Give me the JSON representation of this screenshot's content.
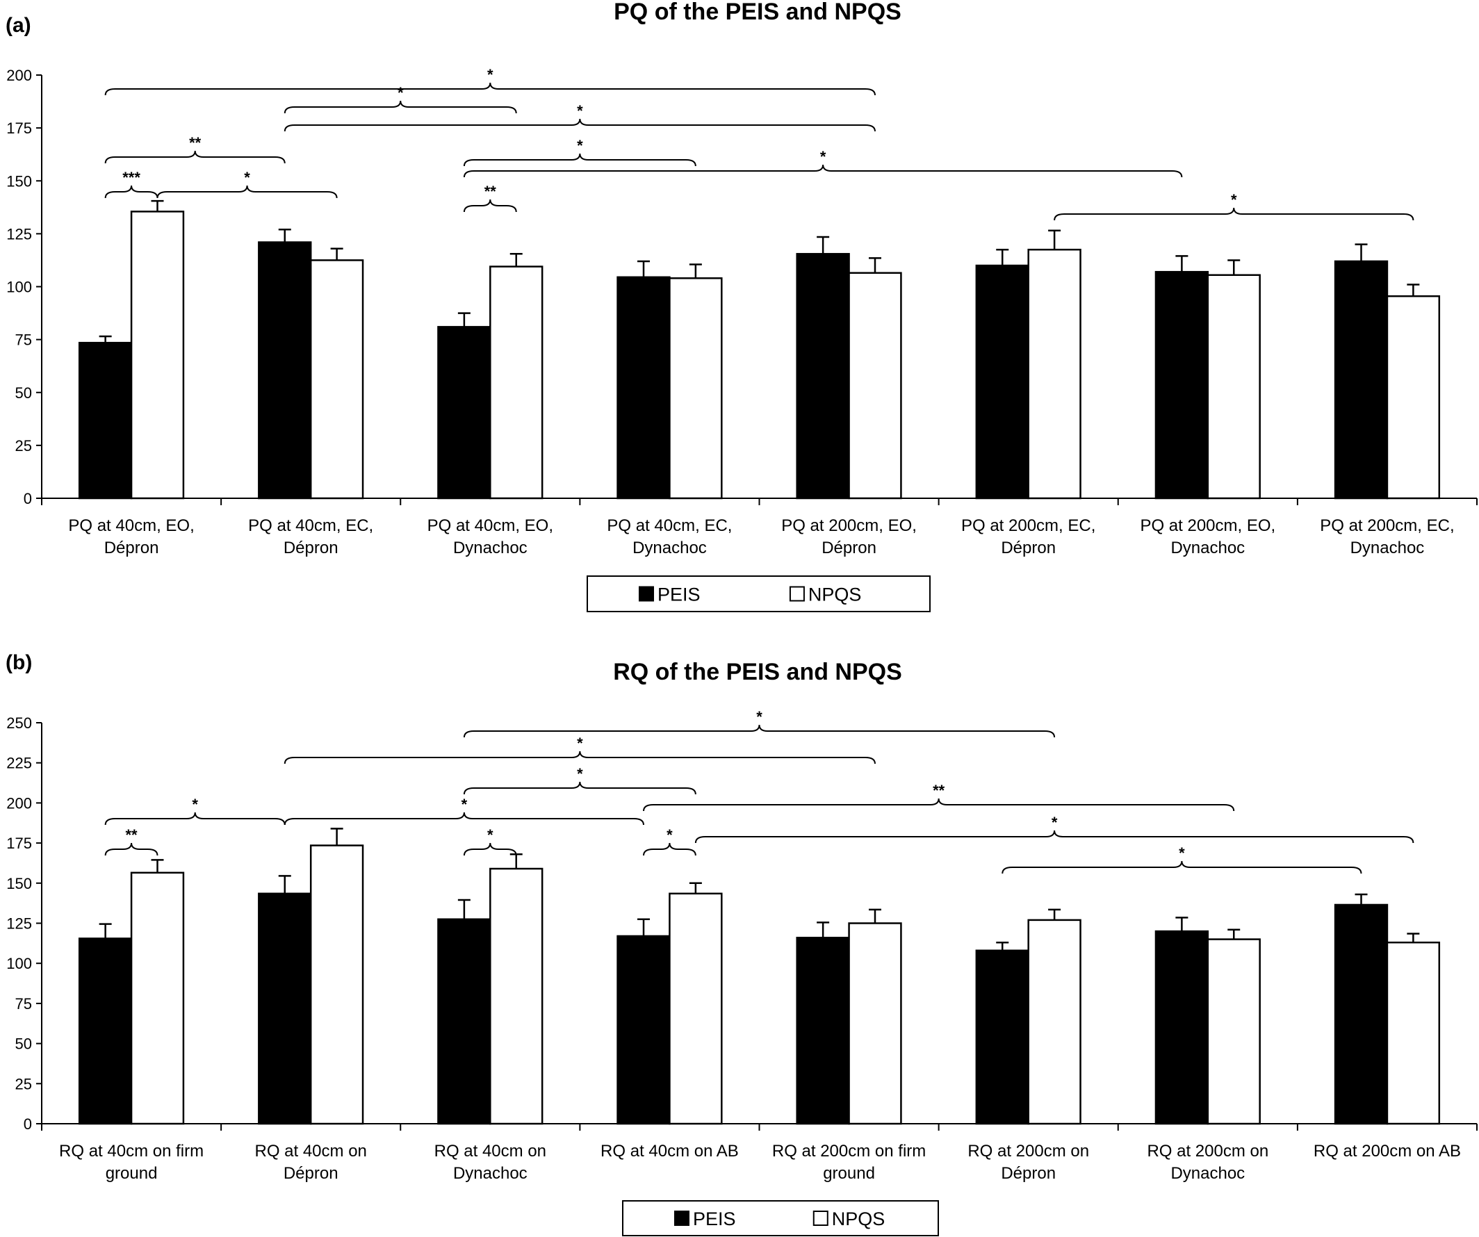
{
  "chart_data": [
    {
      "panel_label": "(a)",
      "type": "bar",
      "title": "PQ of the PEIS and NPQS",
      "ylim": [
        0,
        200
      ],
      "yticks": [
        0,
        25,
        50,
        75,
        100,
        125,
        150,
        175,
        200
      ],
      "categories": [
        [
          "PQ at 40cm, EO,",
          "Dépron"
        ],
        [
          "PQ at 40cm, EC,",
          "Dépron"
        ],
        [
          "PQ at 40cm, EO,",
          "Dynachoc"
        ],
        [
          "PQ at 40cm, EC,",
          "Dynachoc"
        ],
        [
          "PQ at 200cm, EO,",
          "Dépron"
        ],
        [
          "PQ at 200cm, EC,",
          "Dépron"
        ],
        [
          "PQ at 200cm, EO,",
          "Dynachoc"
        ],
        [
          "PQ at 200cm, EC,",
          "Dynachoc"
        ]
      ],
      "series": [
        {
          "name": "PEIS",
          "color": "#000000",
          "values": [
            73.5,
            121,
            81,
            104.5,
            115.5,
            110,
            107,
            112
          ],
          "errors": [
            3,
            6,
            6.5,
            7.5,
            8,
            7.5,
            7.5,
            8
          ]
        },
        {
          "name": "NPQS",
          "color": "#ffffff",
          "values": [
            135.5,
            112.5,
            109.5,
            104,
            106.5,
            117.5,
            105.5,
            95.5
          ],
          "errors": [
            5,
            5.5,
            6,
            6.5,
            7,
            9,
            7,
            5.5
          ]
        }
      ],
      "legend": {
        "position": "bottom-center",
        "items": [
          "PEIS",
          "NPQS"
        ]
      },
      "significance": [
        {
          "label": "*",
          "from": [
            0,
            0
          ],
          "to": [
            4,
            1
          ]
        },
        {
          "label": "*",
          "from": [
            1,
            0
          ],
          "to": [
            2,
            1
          ]
        },
        {
          "label": "*",
          "from": [
            1,
            0
          ],
          "to": [
            4,
            1
          ]
        },
        {
          "label": "**",
          "from": [
            0,
            0
          ],
          "to": [
            1,
            0
          ]
        },
        {
          "label": "*",
          "from": [
            2,
            0
          ],
          "to": [
            3,
            1
          ]
        },
        {
          "label": "*",
          "from": [
            2,
            0
          ],
          "to": [
            6,
            0
          ]
        },
        {
          "label": "***",
          "from": [
            0,
            0
          ],
          "to": [
            0,
            1
          ]
        },
        {
          "label": "*",
          "from": [
            0,
            1
          ],
          "to": [
            1,
            1
          ]
        },
        {
          "label": "**",
          "from": [
            2,
            0
          ],
          "to": [
            2,
            1
          ]
        },
        {
          "label": "*",
          "from": [
            5,
            1
          ],
          "to": [
            7,
            1
          ]
        }
      ]
    },
    {
      "panel_label": "(b)",
      "type": "bar",
      "title": "RQ of the PEIS and NPQS",
      "ylim": [
        0,
        250
      ],
      "yticks": [
        0,
        25,
        50,
        75,
        100,
        125,
        150,
        175,
        200,
        225,
        250
      ],
      "categories": [
        [
          "RQ at 40cm on firm",
          "ground"
        ],
        [
          "RQ at 40cm on",
          "Dépron"
        ],
        [
          "RQ at 40cm on",
          "Dynachoc"
        ],
        [
          "RQ at 40cm on AB"
        ],
        [
          "RQ at 200cm on firm",
          "ground"
        ],
        [
          "RQ at 200cm on",
          "Dépron"
        ],
        [
          "RQ at 200cm on",
          "Dynachoc"
        ],
        [
          "RQ at 200cm on AB"
        ]
      ],
      "series": [
        {
          "name": "PEIS",
          "color": "#000000",
          "values": [
            115.5,
            143.5,
            127.5,
            117,
            116,
            108,
            120,
            136.5
          ],
          "errors": [
            9,
            11,
            12,
            10.5,
            9.5,
            5,
            8.5,
            6.5
          ]
        },
        {
          "name": "NPQS",
          "color": "#ffffff",
          "values": [
            156.5,
            173.5,
            159,
            143.5,
            125,
            127,
            115,
            113
          ],
          "errors": [
            8,
            10.5,
            9,
            6.5,
            8.5,
            6.5,
            6,
            5.5
          ]
        }
      ],
      "legend": {
        "position": "bottom-center",
        "items": [
          "PEIS",
          "NPQS"
        ]
      },
      "significance": [
        {
          "label": "*",
          "from": [
            2,
            0
          ],
          "to": [
            5,
            1
          ]
        },
        {
          "label": "*",
          "from": [
            1,
            0
          ],
          "to": [
            4,
            1
          ]
        },
        {
          "label": "*",
          "from": [
            2,
            0
          ],
          "to": [
            3,
            1
          ]
        },
        {
          "label": "**",
          "from": [
            3,
            0
          ],
          "to": [
            6,
            1
          ]
        },
        {
          "label": "*",
          "from": [
            0,
            0
          ],
          "to": [
            1,
            0
          ]
        },
        {
          "label": "*",
          "from": [
            1,
            0
          ],
          "to": [
            3,
            0
          ]
        },
        {
          "label": "*",
          "from": [
            3,
            1
          ],
          "to": [
            7,
            1
          ]
        },
        {
          "label": "**",
          "from": [
            0,
            0
          ],
          "to": [
            0,
            1
          ]
        },
        {
          "label": "*",
          "from": [
            2,
            0
          ],
          "to": [
            2,
            1
          ]
        },
        {
          "label": "*",
          "from": [
            3,
            0
          ],
          "to": [
            3,
            1
          ]
        },
        {
          "label": "*",
          "from": [
            5,
            0
          ],
          "to": [
            7,
            0
          ]
        }
      ]
    }
  ]
}
